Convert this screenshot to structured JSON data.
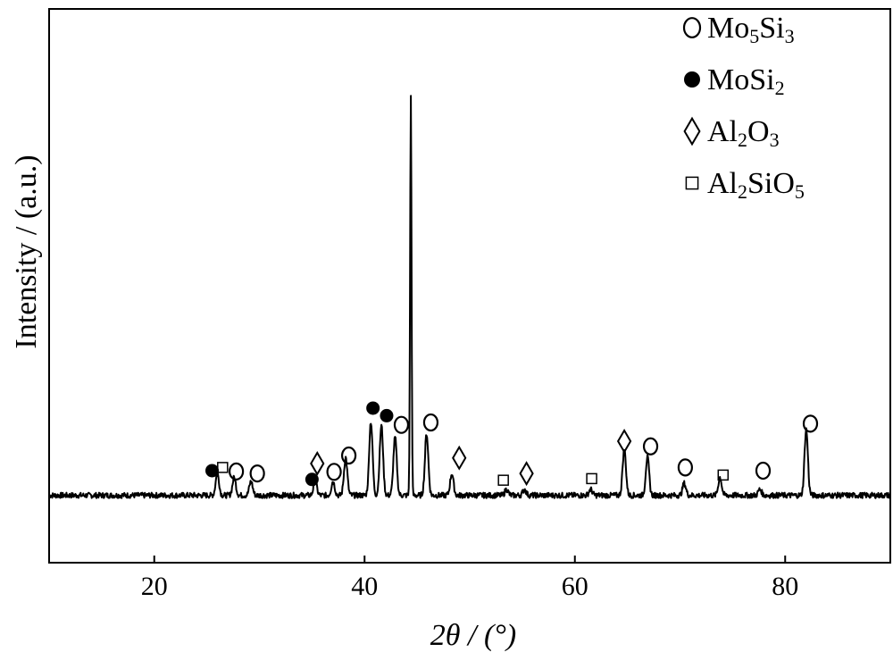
{
  "chart_data": {
    "type": "line",
    "title": "",
    "xlabel": "2θ / (°)",
    "ylabel": "Intensity / (a.u.)",
    "xlim": [
      10,
      90
    ],
    "ylim": [
      0,
      100
    ],
    "y_ticks_shown": false,
    "grid": false,
    "legend_position": "top-right",
    "x_ticks": [
      20,
      40,
      60,
      80
    ],
    "x_tick_labels": [
      "20",
      "40",
      "60",
      "80"
    ],
    "legend": [
      {
        "marker": "open-circle",
        "label": "Mo",
        "sub1": "5",
        "mid": "Si",
        "sub2": "3",
        "text": "Mo5Si3"
      },
      {
        "marker": "filled-circle",
        "label": "MoSi",
        "sub1": "2",
        "mid": "",
        "sub2": "",
        "text": "MoSi2"
      },
      {
        "marker": "diamond",
        "label": "Al",
        "sub1": "2",
        "mid": "O",
        "sub2": "3",
        "text": "Al2O3"
      },
      {
        "marker": "square",
        "label": "Al",
        "sub1": "2",
        "mid": "SiO",
        "sub2": "5",
        "text": "Al2SiO5"
      }
    ],
    "series": [
      {
        "baseline": 3,
        "peaks": [
          {
            "x": 26.0,
            "y": 5.5
          },
          {
            "x": 27.6,
            "y": 4.5
          },
          {
            "x": 29.2,
            "y": 3.5
          },
          {
            "x": 35.3,
            "y": 3.5
          },
          {
            "x": 37.0,
            "y": 3.5
          },
          {
            "x": 38.2,
            "y": 9.5
          },
          {
            "x": 40.6,
            "y": 18.5
          },
          {
            "x": 41.6,
            "y": 17.5
          },
          {
            "x": 42.9,
            "y": 14.5
          },
          {
            "x": 44.4,
            "y": 100
          },
          {
            "x": 45.9,
            "y": 15.5
          },
          {
            "x": 48.3,
            "y": 5.5
          },
          {
            "x": 53.5,
            "y": 1.5
          },
          {
            "x": 55.2,
            "y": 1.5
          },
          {
            "x": 61.5,
            "y": 1.5
          },
          {
            "x": 64.7,
            "y": 11.5
          },
          {
            "x": 66.9,
            "y": 9.5
          },
          {
            "x": 70.4,
            "y": 3.0
          },
          {
            "x": 73.8,
            "y": 4.5
          },
          {
            "x": 77.6,
            "y": 1.5
          },
          {
            "x": 82.0,
            "y": 16.5
          }
        ]
      }
    ],
    "annotations": [
      {
        "marker": "filled-circle",
        "x": 25.5,
        "y": 9.2
      },
      {
        "marker": "square",
        "x": 26.5,
        "y": 10.0
      },
      {
        "marker": "open-circle",
        "x": 27.8,
        "y": 9.0
      },
      {
        "marker": "open-circle",
        "x": 29.8,
        "y": 8.5
      },
      {
        "marker": "filled-circle",
        "x": 35.0,
        "y": 7.0
      },
      {
        "marker": "diamond",
        "x": 35.5,
        "y": 11.0
      },
      {
        "marker": "open-circle",
        "x": 37.1,
        "y": 8.9
      },
      {
        "marker": "open-circle",
        "x": 38.5,
        "y": 13.0
      },
      {
        "marker": "filled-circle",
        "x": 40.8,
        "y": 24.9
      },
      {
        "marker": "filled-circle",
        "x": 42.1,
        "y": 23.0
      },
      {
        "marker": "open-circle",
        "x": 43.5,
        "y": 20.7
      },
      {
        "marker": "open-circle",
        "x": 46.3,
        "y": 21.3
      },
      {
        "marker": "diamond",
        "x": 49.0,
        "y": 12.4
      },
      {
        "marker": "square",
        "x": 53.2,
        "y": 6.8
      },
      {
        "marker": "diamond",
        "x": 55.4,
        "y": 8.5
      },
      {
        "marker": "square",
        "x": 61.6,
        "y": 7.2
      },
      {
        "marker": "diamond",
        "x": 64.7,
        "y": 16.6
      },
      {
        "marker": "open-circle",
        "x": 67.2,
        "y": 15.3
      },
      {
        "marker": "open-circle",
        "x": 70.5,
        "y": 10.0
      },
      {
        "marker": "square",
        "x": 74.1,
        "y": 8.1
      },
      {
        "marker": "open-circle",
        "x": 77.9,
        "y": 9.2
      },
      {
        "marker": "open-circle",
        "x": 82.4,
        "y": 21.0
      }
    ]
  }
}
